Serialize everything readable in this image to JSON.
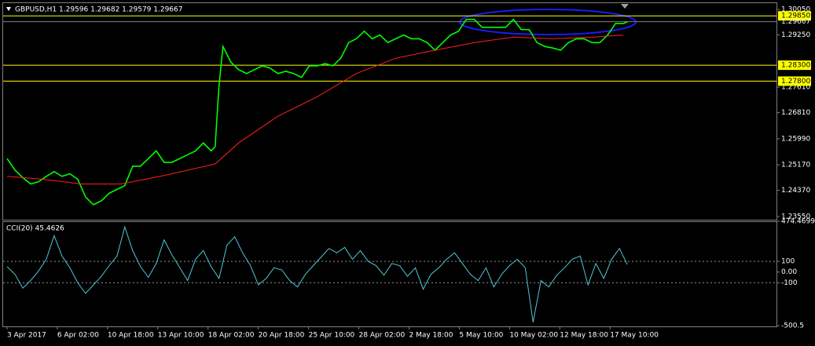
{
  "chart_data": [
    {
      "type": "line",
      "title": "GBPUSD,H1  1.29596 1.29682 1.29579 1.29667",
      "xlim": [
        0,
        985
      ],
      "ylim": [
        1.2345,
        1.302
      ],
      "yticks": [
        {
          "value": 1.3005,
          "label": "1.30050"
        },
        {
          "value": 1.2925,
          "label": "1.29250"
        },
        {
          "value": 1.2761,
          "label": "1.27610"
        },
        {
          "value": 1.2681,
          "label": "1.26810"
        },
        {
          "value": 1.2599,
          "label": "1.25990"
        },
        {
          "value": 1.2517,
          "label": "1.25170"
        },
        {
          "value": 1.2437,
          "label": "1.24370"
        },
        {
          "value": 1.2355,
          "label": "1.23550"
        }
      ],
      "hlines": [
        {
          "value": 1.2985,
          "label": "1.29850",
          "color": "#ffff00",
          "boxed": true
        },
        {
          "value": 1.283,
          "label": "1.28300",
          "color": "#ffff00",
          "boxed": true
        },
        {
          "value": 1.278,
          "label": "1.27800",
          "color": "#ffff00",
          "boxed": true
        },
        {
          "value": 1.29667,
          "label": "1.29667",
          "color": "#808080",
          "boxed": false
        }
      ],
      "series": [
        {
          "color": "#00ff00",
          "x": [
            5,
            15,
            25,
            35,
            45,
            55,
            65,
            75,
            85,
            95,
            105,
            115,
            125,
            135,
            145,
            155,
            165,
            175,
            185,
            195,
            205,
            215,
            225,
            235,
            245,
            255,
            265,
            270,
            275,
            280,
            290,
            300,
            310,
            320,
            330,
            340,
            350,
            360,
            370,
            380,
            390,
            400,
            410,
            420,
            430,
            440,
            450,
            460,
            470,
            480,
            490,
            500,
            510,
            520,
            530,
            540,
            550,
            560,
            570,
            580,
            590,
            600,
            610,
            620,
            630,
            640,
            650,
            660,
            670,
            680,
            690,
            700,
            710,
            720,
            730,
            740,
            750,
            760,
            770,
            780,
            790,
            795
          ],
          "values": [
            1.2537,
            1.2501,
            1.2477,
            1.2457,
            1.2464,
            1.2481,
            1.2496,
            1.2481,
            1.2489,
            1.2472,
            1.2416,
            1.2392,
            1.2404,
            1.2428,
            1.244,
            1.2452,
            1.2513,
            1.2513,
            1.2537,
            1.2561,
            1.2525,
            1.2525,
            1.2537,
            1.2549,
            1.2561,
            1.2586,
            1.2561,
            1.2574,
            1.2767,
            1.2889,
            1.284,
            1.2816,
            1.2804,
            1.2816,
            1.2828,
            1.2821,
            1.2804,
            1.2811,
            1.2804,
            1.2792,
            1.2828,
            1.2828,
            1.2835,
            1.2828,
            1.2852,
            1.2901,
            1.2913,
            1.2937,
            1.2913,
            1.2925,
            1.2901,
            1.2913,
            1.2925,
            1.2913,
            1.2913,
            1.2901,
            1.2877,
            1.2901,
            1.2925,
            1.2937,
            1.2974,
            1.2974,
            1.2949,
            1.2949,
            1.2949,
            1.2949,
            1.2974,
            1.2942,
            1.2942,
            1.2901,
            1.2889,
            1.2884,
            1.2877,
            1.2901,
            1.2913,
            1.2913,
            1.2901,
            1.2901,
            1.2925,
            1.2961,
            1.2961,
            1.2966
          ]
        },
        {
          "color": "#ff2020",
          "x": [
            5,
            50,
            100,
            150,
            200,
            270,
            300,
            350,
            400,
            450,
            500,
            550,
            600,
            650,
            700,
            750,
            790
          ],
          "values": [
            1.2481,
            1.2472,
            1.2457,
            1.2457,
            1.2481,
            1.252,
            1.2586,
            1.267,
            1.2731,
            1.2804,
            1.2852,
            1.2877,
            1.2901,
            1.2918,
            1.2913,
            1.2918,
            1.2925
          ]
        }
      ]
    },
    {
      "type": "line",
      "title": "CCI(20) 45.4626",
      "xlim": [
        0,
        985
      ],
      "ylim": [
        -500.5,
        474.4699
      ],
      "yticks": [
        474.4699,
        100,
        {
          "value": 0,
          "label": "0.00"
        },
        -100,
        -500.5
      ],
      "levels": [
        100,
        -100
      ],
      "xticks": [
        {
          "value": 5,
          "label": "3 Apr 2017"
        },
        {
          "value": 69,
          "label": "6 Apr 02:00"
        },
        {
          "value": 133,
          "label": "10 Apr 18:00"
        },
        {
          "value": 197,
          "label": "13 Apr 10:00"
        },
        {
          "value": 261,
          "label": "18 Apr 02:00"
        },
        {
          "value": 325,
          "label": "20 Apr 18:00"
        },
        {
          "value": 389,
          "label": "25 Apr 10:00"
        },
        {
          "value": 453,
          "label": "28 Apr 02:00"
        },
        {
          "value": 517,
          "label": "2 May 18:00"
        },
        {
          "value": 581,
          "label": "5 May 10:00"
        },
        {
          "value": 645,
          "label": "10 May 02:00"
        },
        {
          "value": 709,
          "label": "12 May 18:00"
        },
        {
          "value": 773,
          "label": "17 May 10:00"
        }
      ],
      "series": [
        {
          "color": "#4fc8d8",
          "x": [
            5,
            15,
            25,
            35,
            45,
            55,
            65,
            75,
            85,
            95,
            105,
            115,
            125,
            135,
            145,
            155,
            165,
            175,
            185,
            195,
            205,
            215,
            225,
            235,
            245,
            255,
            265,
            275,
            285,
            295,
            305,
            315,
            325,
            335,
            345,
            355,
            365,
            375,
            385,
            395,
            405,
            415,
            425,
            435,
            445,
            455,
            465,
            475,
            485,
            495,
            505,
            515,
            525,
            535,
            545,
            555,
            565,
            575,
            585,
            595,
            605,
            615,
            625,
            635,
            645,
            655,
            665,
            675,
            685,
            695,
            705,
            715,
            725,
            735,
            745,
            755,
            765,
            775,
            785,
            795
          ],
          "values": [
            50,
            -20,
            -150,
            -80,
            10,
            120,
            340,
            150,
            40,
            -100,
            -200,
            -120,
            -40,
            60,
            150,
            420,
            200,
            50,
            -50,
            80,
            300,
            160,
            40,
            -80,
            120,
            200,
            50,
            -60,
            250,
            330,
            180,
            60,
            -120,
            -60,
            40,
            20,
            -80,
            -140,
            -20,
            60,
            140,
            220,
            180,
            230,
            120,
            200,
            100,
            60,
            -30,
            80,
            60,
            -40,
            40,
            -160,
            -20,
            40,
            120,
            180,
            80,
            -20,
            -80,
            40,
            -140,
            -20,
            60,
            120,
            40,
            -470,
            -80,
            -140,
            -30,
            40,
            120,
            150,
            -120,
            80,
            -60,
            120,
            220,
            70
          ]
        }
      ]
    }
  ]
}
